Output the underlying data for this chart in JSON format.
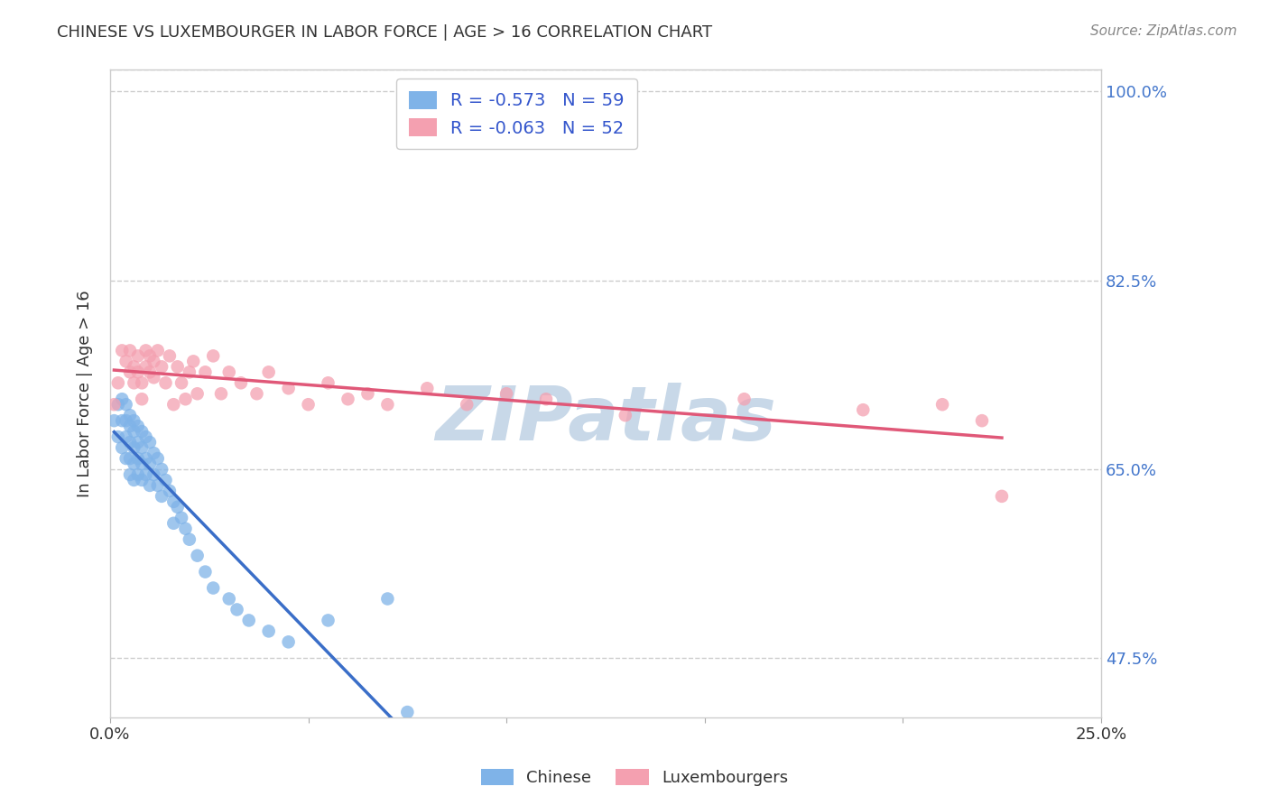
{
  "title": "CHINESE VS LUXEMBOURGER IN LABOR FORCE | AGE > 16 CORRELATION CHART",
  "source": "Source: ZipAtlas.com",
  "ylabel_label": "In Labor Force | Age > 16",
  "xlim": [
    0.0,
    0.25
  ],
  "ylim": [
    0.42,
    1.02
  ],
  "ytick_labels_right": [
    "100.0%",
    "82.5%",
    "65.0%",
    "47.5%"
  ],
  "ytick_vals_right": [
    1.0,
    0.825,
    0.65,
    0.475
  ],
  "title_color": "#333333",
  "source_color": "#888888",
  "grid_color": "#cccccc",
  "watermark": "ZIPatlas",
  "watermark_color": "#c8d8e8",
  "chinese_color": "#7fb3e8",
  "luxembourger_color": "#f4a0b0",
  "chinese_line_color": "#3a6ec8",
  "luxembourger_line_color": "#e05878",
  "chinese_R": -0.573,
  "chinese_N": 59,
  "luxembourger_R": -0.063,
  "luxembourger_N": 52,
  "chinese_x": [
    0.001,
    0.002,
    0.002,
    0.003,
    0.003,
    0.003,
    0.004,
    0.004,
    0.004,
    0.004,
    0.005,
    0.005,
    0.005,
    0.005,
    0.005,
    0.006,
    0.006,
    0.006,
    0.006,
    0.006,
    0.007,
    0.007,
    0.007,
    0.007,
    0.008,
    0.008,
    0.008,
    0.008,
    0.009,
    0.009,
    0.009,
    0.01,
    0.01,
    0.01,
    0.011,
    0.011,
    0.012,
    0.012,
    0.013,
    0.013,
    0.014,
    0.015,
    0.016,
    0.016,
    0.017,
    0.018,
    0.019,
    0.02,
    0.022,
    0.024,
    0.026,
    0.03,
    0.032,
    0.035,
    0.04,
    0.045,
    0.055,
    0.07,
    0.075
  ],
  "chinese_y": [
    0.695,
    0.71,
    0.68,
    0.715,
    0.695,
    0.67,
    0.71,
    0.695,
    0.68,
    0.66,
    0.7,
    0.69,
    0.675,
    0.66,
    0.645,
    0.695,
    0.685,
    0.67,
    0.655,
    0.64,
    0.69,
    0.675,
    0.66,
    0.645,
    0.685,
    0.67,
    0.655,
    0.64,
    0.68,
    0.66,
    0.645,
    0.675,
    0.655,
    0.635,
    0.665,
    0.645,
    0.66,
    0.635,
    0.65,
    0.625,
    0.64,
    0.63,
    0.62,
    0.6,
    0.615,
    0.605,
    0.595,
    0.585,
    0.57,
    0.555,
    0.54,
    0.53,
    0.52,
    0.51,
    0.5,
    0.49,
    0.51,
    0.53,
    0.425
  ],
  "luxembourger_x": [
    0.001,
    0.002,
    0.003,
    0.004,
    0.005,
    0.005,
    0.006,
    0.006,
    0.007,
    0.007,
    0.008,
    0.008,
    0.009,
    0.009,
    0.01,
    0.01,
    0.011,
    0.011,
    0.012,
    0.013,
    0.014,
    0.015,
    0.016,
    0.017,
    0.018,
    0.019,
    0.02,
    0.021,
    0.022,
    0.024,
    0.026,
    0.028,
    0.03,
    0.033,
    0.037,
    0.04,
    0.045,
    0.05,
    0.055,
    0.06,
    0.065,
    0.07,
    0.08,
    0.09,
    0.1,
    0.11,
    0.13,
    0.16,
    0.19,
    0.21,
    0.22,
    0.225
  ],
  "luxembourger_y": [
    0.71,
    0.73,
    0.76,
    0.75,
    0.74,
    0.76,
    0.745,
    0.73,
    0.755,
    0.74,
    0.73,
    0.715,
    0.745,
    0.76,
    0.755,
    0.74,
    0.75,
    0.735,
    0.76,
    0.745,
    0.73,
    0.755,
    0.71,
    0.745,
    0.73,
    0.715,
    0.74,
    0.75,
    0.72,
    0.74,
    0.755,
    0.72,
    0.74,
    0.73,
    0.72,
    0.74,
    0.725,
    0.71,
    0.73,
    0.715,
    0.72,
    0.71,
    0.725,
    0.71,
    0.72,
    0.715,
    0.7,
    0.715,
    0.705,
    0.71,
    0.695,
    0.625
  ]
}
